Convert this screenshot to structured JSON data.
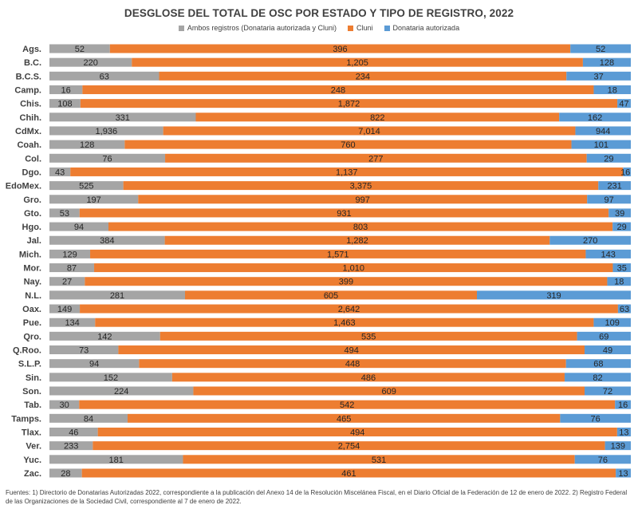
{
  "chart_data": {
    "type": "bar",
    "orientation": "horizontal",
    "stacked": "percent",
    "title": "DESGLOSE DEL TOTAL DE OSC POR ESTADO Y TIPO DE REGISTRO, 2022",
    "legend_position": "top",
    "categories": [
      "Ags.",
      "B.C.",
      "B.C.S.",
      "Camp.",
      "Chis.",
      "Chih.",
      "CdMx.",
      "Coah.",
      "Col.",
      "Dgo.",
      "EdoMex.",
      "Gro.",
      "Gto.",
      "Hgo.",
      "Jal.",
      "Mich.",
      "Mor.",
      "Nay.",
      "N.L.",
      "Oax.",
      "Pue.",
      "Qro.",
      "Q.Roo.",
      "S.L.P.",
      "Sin.",
      "Son.",
      "Tab.",
      "Tamps.",
      "Tlax.",
      "Ver.",
      "Yuc.",
      "Zac."
    ],
    "series": [
      {
        "name": "Ambos registros (Donataria autorizada y Cluni)",
        "color": "#a5a5a5",
        "values": [
          52,
          220,
          63,
          16,
          108,
          331,
          1936,
          128,
          76,
          43,
          525,
          197,
          53,
          94,
          384,
          129,
          87,
          27,
          281,
          149,
          134,
          142,
          73,
          94,
          152,
          224,
          30,
          84,
          46,
          233,
          181,
          28
        ]
      },
      {
        "name": "Cluni",
        "color": "#ed7d31",
        "values": [
          396,
          1205,
          234,
          248,
          1872,
          822,
          7014,
          760,
          277,
          1137,
          3375,
          997,
          931,
          803,
          1282,
          1571,
          1010,
          399,
          605,
          2642,
          1463,
          535,
          494,
          448,
          486,
          609,
          542,
          465,
          494,
          2754,
          531,
          461
        ]
      },
      {
        "name": "Donataria autorizada",
        "color": "#5b9bd5",
        "values": [
          52,
          128,
          37,
          18,
          47,
          162,
          944,
          101,
          29,
          16,
          231,
          97,
          39,
          29,
          270,
          143,
          35,
          18,
          319,
          63,
          109,
          69,
          49,
          68,
          82,
          72,
          16,
          76,
          13,
          139,
          76,
          13
        ]
      }
    ],
    "footnote": "Fuentes: 1) Directorio de Donatarias Autorizadas 2022,  correspondiente a la publicación del Anexo 14 de la Resolución Miscelánea Fiscal, en el Diario Oficial de la Federación de 12  de enero de 2022.  2) Registro Federal de las Organizaciones de la Sociedad Civil, correspondiente al 7 de enero de 2022."
  }
}
